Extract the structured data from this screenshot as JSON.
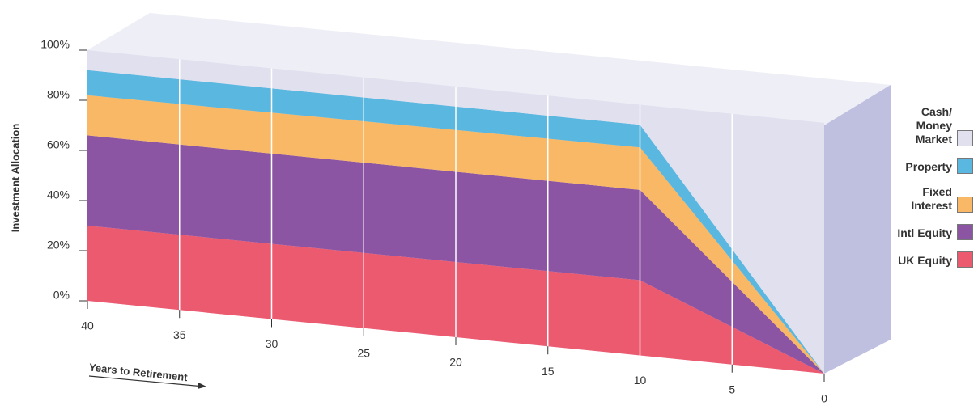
{
  "chart_data": {
    "type": "stacked-area",
    "y_label": "Investment Allocation",
    "x_label": "Years to Retirement",
    "x": [
      40,
      10,
      0
    ],
    "xlim": [
      40,
      0
    ],
    "xticks": [
      40,
      35,
      30,
      25,
      20,
      15,
      10,
      5,
      0
    ],
    "ylim": [
      0,
      100
    ],
    "yticks": [
      {
        "value": 0,
        "label": "0%"
      },
      {
        "value": 20,
        "label": "20%"
      },
      {
        "value": 40,
        "label": "40%"
      },
      {
        "value": 60,
        "label": "60%"
      },
      {
        "value": 80,
        "label": "80%"
      },
      {
        "value": 100,
        "label": "100%"
      }
    ],
    "grid": true,
    "legend": "right",
    "series": [
      {
        "name": "UK Equity",
        "color": "#ec5a70",
        "values": [
          30,
          30,
          0
        ]
      },
      {
        "name": "Intl Equity",
        "color": "#8c55a3",
        "values": [
          36,
          36,
          0
        ]
      },
      {
        "name": "Fixed Interest",
        "color": "#f8b865",
        "values": [
          16,
          17,
          0
        ]
      },
      {
        "name": "Property",
        "color": "#59b7e0",
        "values": [
          10,
          9,
          0
        ]
      },
      {
        "name": "Cash/ Money Market",
        "color": "#e1e0ef",
        "values": [
          8,
          8,
          100
        ]
      }
    ]
  }
}
